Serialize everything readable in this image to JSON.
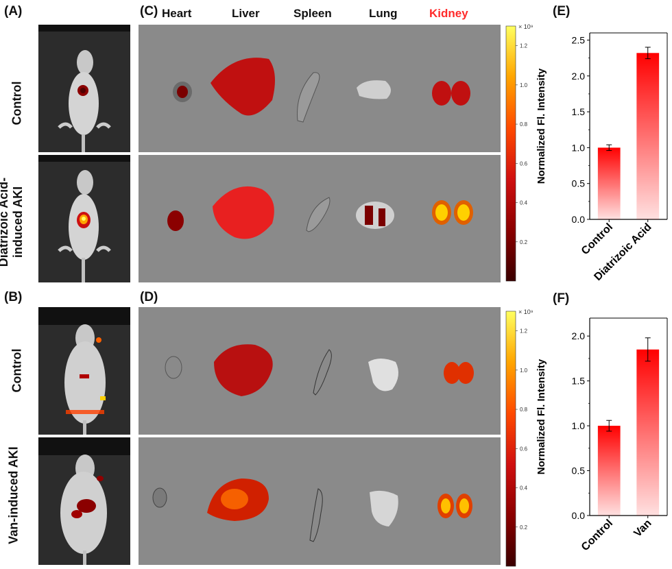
{
  "panels": {
    "A": "(A)",
    "B": "(B)",
    "C": "(C)",
    "D": "(D)",
    "E": "(E)",
    "F": "(F)"
  },
  "organs": [
    "Heart",
    "Liver",
    "Spleen",
    "Lung",
    "Kidney"
  ],
  "organ_colors": {
    "default": "#111111",
    "Kidney": "#ff2a2a"
  },
  "row_labels": {
    "A_top": "Control",
    "A_bottom_line1": "Diatrizoic Acid-",
    "A_bottom_line2": "induced AKI",
    "B_top": "Control",
    "B_bottom": "Van-induced AKI"
  },
  "colorbar": {
    "exponent_label": "× 10⁹",
    "ticks": [
      "0.2",
      "0.4",
      "0.6",
      "0.8",
      "1.0",
      "1.2"
    ],
    "tick_values": [
      0.2,
      0.4,
      0.6,
      0.8,
      1.0,
      1.2
    ],
    "range": [
      0,
      1.3
    ],
    "colors": [
      "#3a0000",
      "#8b0000",
      "#d01010",
      "#ff4a00",
      "#ffa500",
      "#ffff60"
    ]
  },
  "chart_data": [
    {
      "panel": "E",
      "type": "bar",
      "categories": [
        "Control",
        "Diatrizoic Acid"
      ],
      "values": [
        1.0,
        2.32
      ],
      "errors": [
        0.04,
        0.08
      ],
      "ylabel": "Normalized Fl. Intensity",
      "ylim": [
        0,
        2.6
      ],
      "yticks": [
        0.0,
        0.5,
        1.0,
        1.5,
        2.0,
        2.5
      ],
      "ytick_labels": [
        "0.0",
        "0.5",
        "1.0",
        "1.5",
        "2.0",
        "2.5"
      ],
      "grid": false,
      "bar_color": "#ff0000"
    },
    {
      "panel": "F",
      "type": "bar",
      "categories": [
        "Control",
        "Van"
      ],
      "values": [
        1.0,
        1.85
      ],
      "errors": [
        0.06,
        0.13
      ],
      "ylabel": "Normalized Fl. Intensity",
      "ylim": [
        0,
        2.2
      ],
      "yticks": [
        0.0,
        0.5,
        1.0,
        1.5,
        2.0
      ],
      "ytick_labels": [
        "0.0",
        "0.5",
        "1.0",
        "1.5",
        "2.0"
      ],
      "grid": false,
      "bar_color": "#ff0000"
    }
  ]
}
